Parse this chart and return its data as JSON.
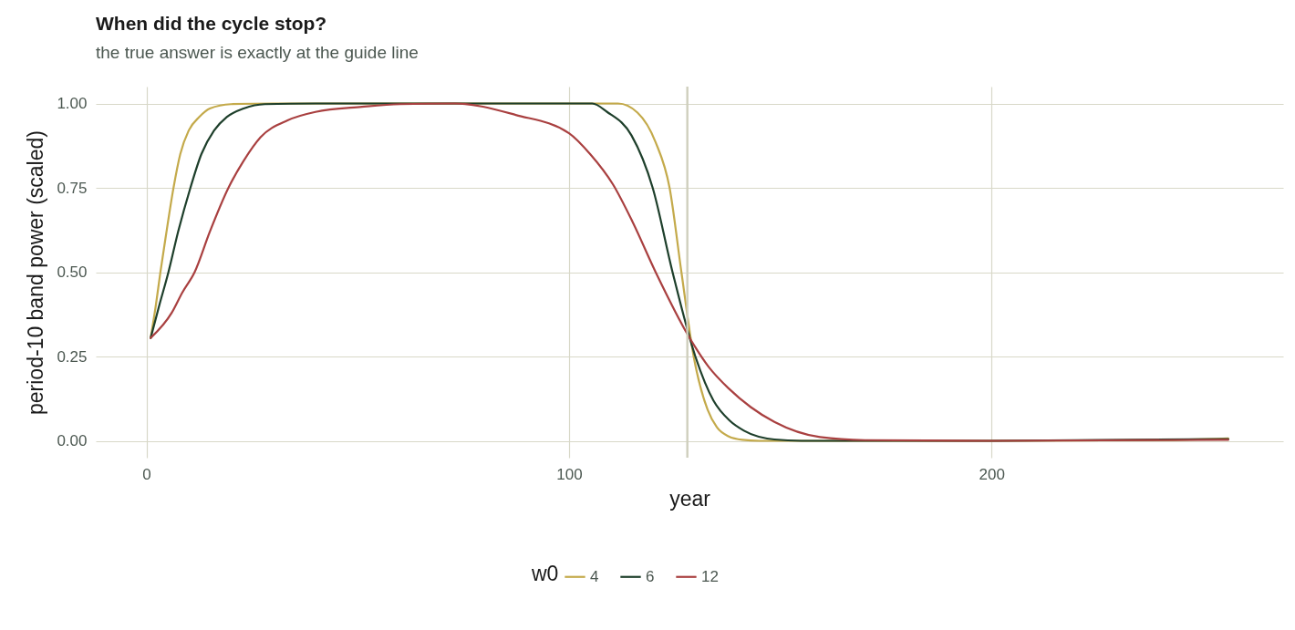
{
  "chart_data": {
    "type": "line",
    "title": "When did the cycle stop?",
    "subtitle": "the true answer is exactly at the guide line",
    "xlabel": "year",
    "ylabel": "period-10 band power (scaled)",
    "legend_title": "w0",
    "series": [
      {
        "name": "4",
        "color": "#c4aa4b",
        "x": [
          1,
          2.2,
          3.3,
          4.5,
          6.4,
          8,
          10,
          12.5,
          15,
          20,
          30,
          80,
          111.6,
          116.2,
          120.5,
          123.8,
          126.6,
          129.5,
          132.8,
          135,
          137.8,
          141,
          145,
          200,
          240,
          256
        ],
        "values": [
          0.305,
          0.4,
          0.5,
          0.6,
          0.75,
          0.85,
          0.92,
          0.96,
          0.985,
          0.998,
          1,
          1,
          1,
          0.973,
          0.885,
          0.75,
          0.5,
          0.25,
          0.092,
          0.04,
          0.013,
          0.003,
          0,
          0,
          0.002,
          0.007
        ]
      },
      {
        "name": "6",
        "color": "#1e3f2b",
        "x": [
          1,
          3,
          5.2,
          7.5,
          10.4,
          13,
          16,
          19,
          23,
          28,
          40,
          80,
          105.5,
          109,
          114.8,
          119.8,
          124.5,
          129.9,
          134.2,
          138,
          141.4,
          148.6,
          155,
          200,
          256
        ],
        "values": [
          0.305,
          0.4,
          0.5,
          0.62,
          0.75,
          0.85,
          0.92,
          0.96,
          0.985,
          0.998,
          1,
          1,
          1,
          0.975,
          0.905,
          0.75,
          0.5,
          0.25,
          0.119,
          0.06,
          0.03,
          0.004,
          0,
          0,
          0.005
        ]
      },
      {
        "name": "12",
        "color": "#a94040",
        "x": [
          1,
          6,
          8.5,
          11.4,
          15,
          19.4,
          23,
          27,
          33.4,
          40,
          51,
          60,
          73,
          87.4,
          100,
          105,
          110.4,
          115,
          120.5,
          128.4,
          133,
          137.8,
          143,
          148.6,
          159.4,
          170,
          200,
          256
        ],
        "values": [
          0.305,
          0.38,
          0.44,
          0.5,
          0.62,
          0.75,
          0.83,
          0.9,
          0.95,
          0.975,
          0.99,
          0.998,
          1,
          0.966,
          0.912,
          0.85,
          0.76,
          0.65,
          0.5,
          0.308,
          0.22,
          0.155,
          0.1,
          0.056,
          0.011,
          0.002,
          0,
          0.003
        ]
      }
    ],
    "xlim": [
      -12,
      269
    ],
    "xticks": [
      0,
      100,
      200
    ],
    "ylim": [
      -0.05,
      1.05
    ],
    "yticks": [
      {
        "value": 0,
        "label": "0.00"
      },
      {
        "value": 0.25,
        "label": "0.25"
      },
      {
        "value": 0.5,
        "label": "0.50"
      },
      {
        "value": 0.75,
        "label": "0.75"
      },
      {
        "value": 1,
        "label": "1.00"
      }
    ],
    "ref_lines": [
      {
        "axis": "x",
        "value": 128,
        "color": "#cfcfbd"
      }
    ],
    "grid": true,
    "legend": "bottom",
    "line_style": "solid"
  }
}
